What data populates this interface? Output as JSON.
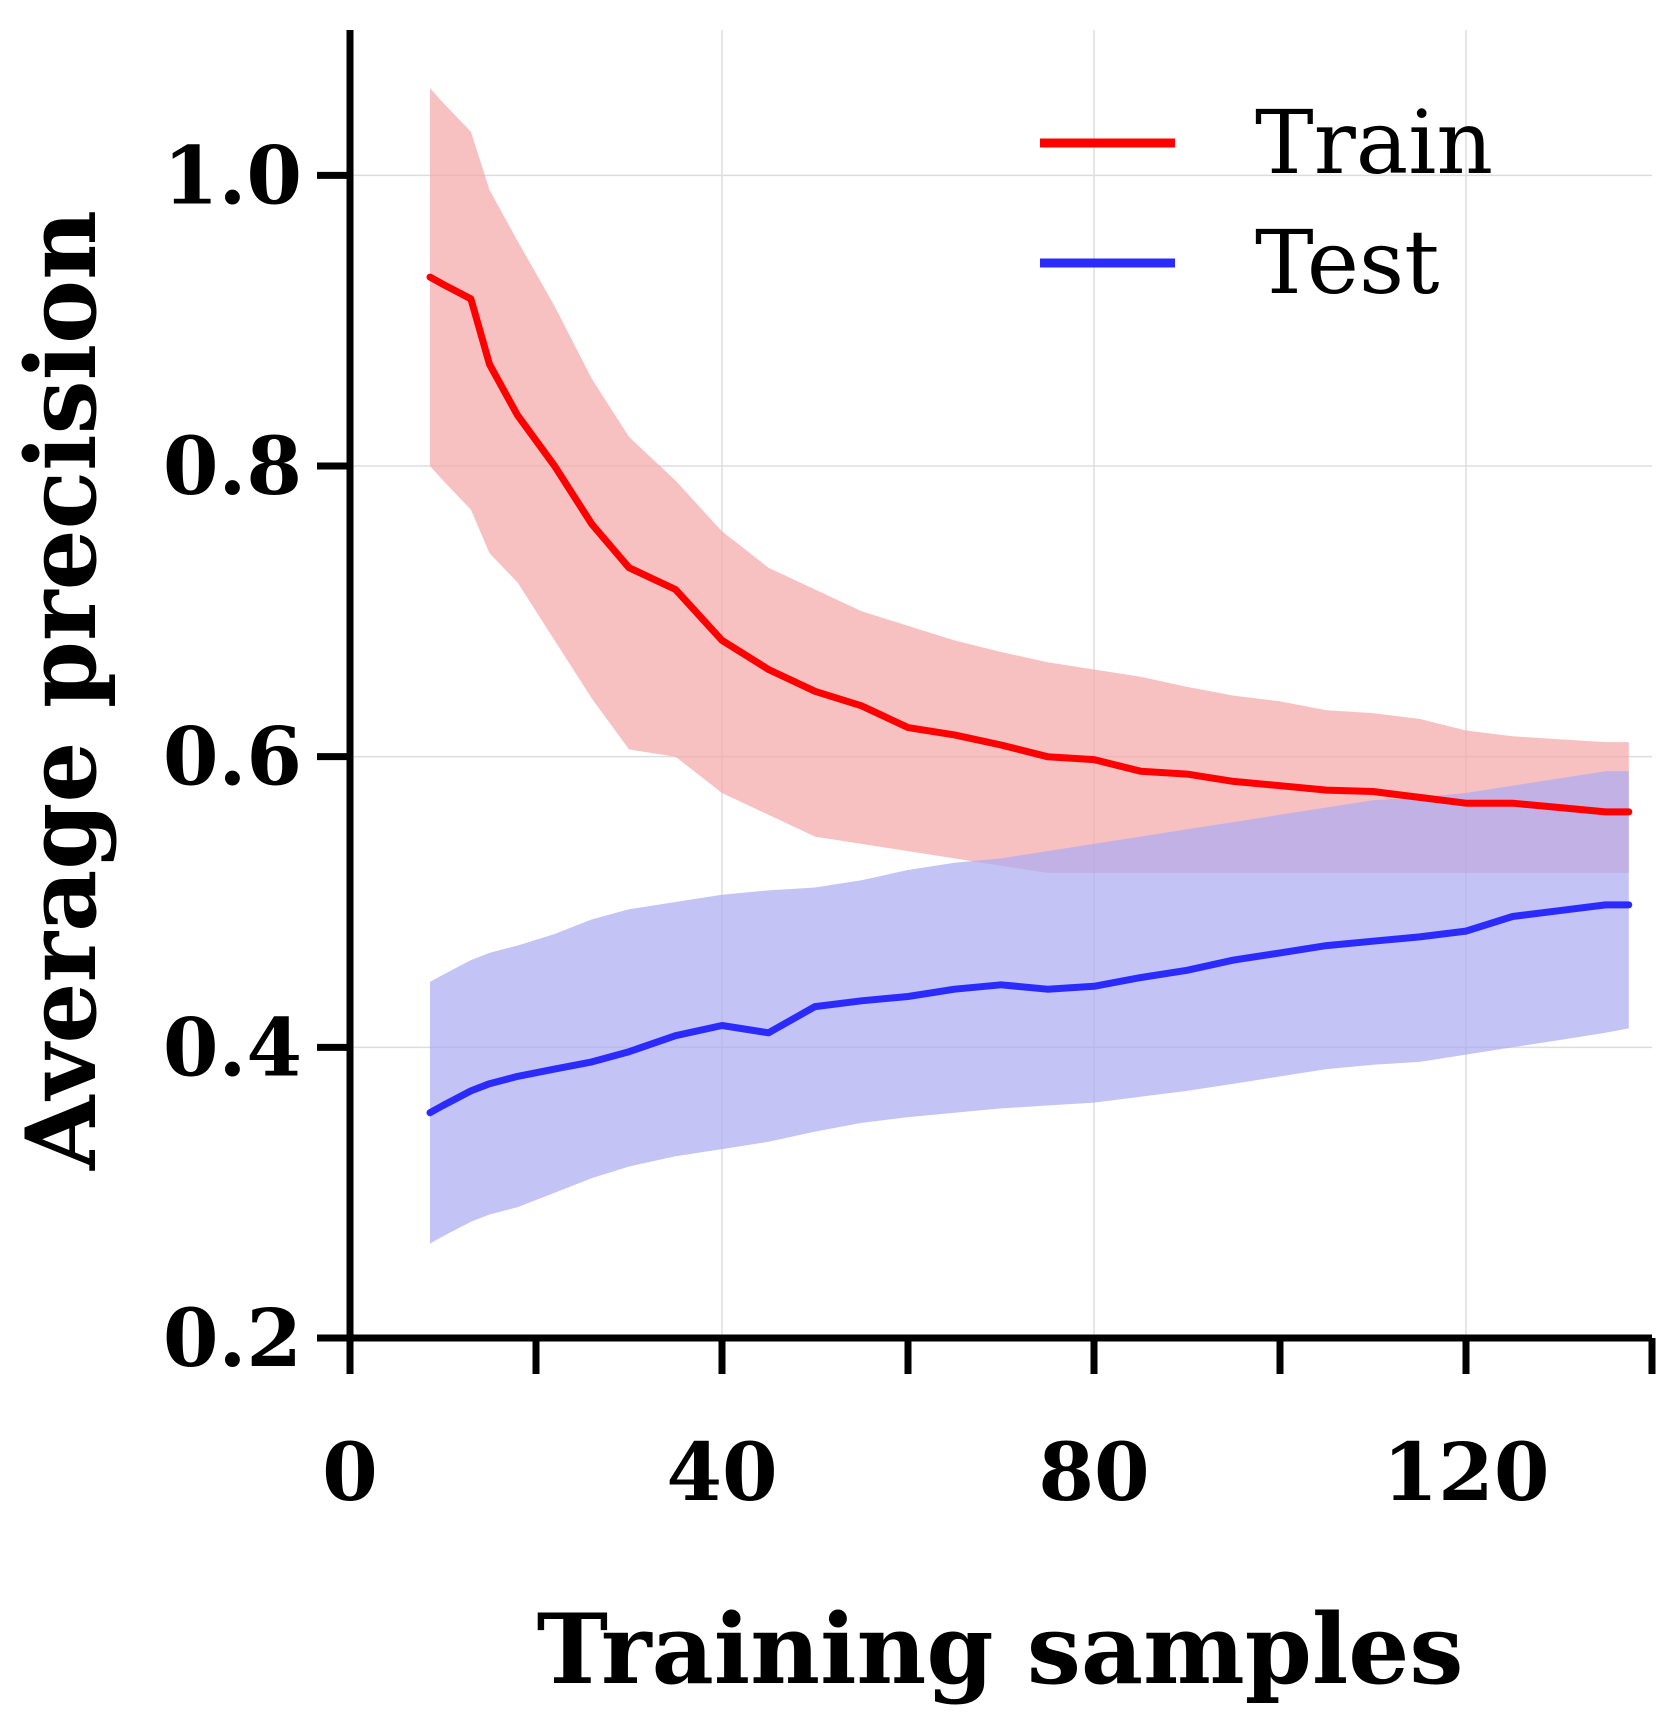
{
  "chart_data": {
    "type": "line",
    "title": "",
    "xlabel": "Training samples",
    "ylabel": "Average precision",
    "xlim": [
      0,
      140
    ],
    "ylim": [
      0.2,
      1.1
    ],
    "xticks": [
      0,
      20,
      40,
      60,
      80,
      100,
      120,
      140
    ],
    "xtick_labels": [
      "0",
      "",
      "40",
      "",
      "80",
      "",
      "120",
      ""
    ],
    "yticks": [
      0.2,
      0.4,
      0.6,
      0.8,
      1.0
    ],
    "ytick_labels": [
      "0.2",
      "0.4",
      "0.6",
      "0.8",
      "1.0"
    ],
    "grid": true,
    "legend_position": "top-right",
    "series": [
      {
        "name": "Train",
        "color": "#ff0000",
        "band_color": "#f4a6a6",
        "x": [
          8.6,
          10,
          13,
          15,
          18,
          22,
          26,
          30,
          35,
          40,
          45,
          50,
          55,
          60,
          65,
          70,
          75,
          80,
          85,
          90,
          95,
          100,
          105,
          110,
          115,
          120,
          125,
          130,
          135,
          137.5
        ],
        "y": [
          0.93,
          0.925,
          0.915,
          0.87,
          0.835,
          0.8,
          0.76,
          0.73,
          0.715,
          0.68,
          0.66,
          0.645,
          0.635,
          0.62,
          0.615,
          0.608,
          0.6,
          0.598,
          0.59,
          0.588,
          0.583,
          0.58,
          0.577,
          0.576,
          0.572,
          0.568,
          0.568,
          0.565,
          0.562,
          0.562
        ],
        "lower": [
          0.8,
          0.79,
          0.77,
          0.74,
          0.72,
          0.68,
          0.64,
          0.605,
          0.6,
          0.575,
          0.56,
          0.545,
          0.54,
          0.535,
          0.53,
          0.525,
          0.52,
          0.52,
          0.52,
          0.52,
          0.52,
          0.52,
          0.52,
          0.52,
          0.52,
          0.52,
          0.52,
          0.52,
          0.52,
          0.52
        ],
        "upper": [
          1.06,
          1.05,
          1.03,
          0.99,
          0.955,
          0.91,
          0.86,
          0.82,
          0.79,
          0.755,
          0.73,
          0.715,
          0.7,
          0.69,
          0.68,
          0.672,
          0.665,
          0.66,
          0.655,
          0.648,
          0.642,
          0.638,
          0.632,
          0.63,
          0.626,
          0.618,
          0.614,
          0.612,
          0.61,
          0.61
        ]
      },
      {
        "name": "Test",
        "color": "#2b2bff",
        "band_color": "#a9a9f2",
        "x": [
          8.6,
          10,
          13,
          15,
          18,
          22,
          26,
          30,
          35,
          40,
          45,
          50,
          55,
          60,
          65,
          70,
          75,
          80,
          85,
          90,
          95,
          100,
          105,
          110,
          115,
          120,
          125,
          130,
          135,
          137.5
        ],
        "y": [
          0.355,
          0.36,
          0.37,
          0.375,
          0.38,
          0.385,
          0.39,
          0.397,
          0.408,
          0.415,
          0.41,
          0.428,
          0.432,
          0.435,
          0.44,
          0.443,
          0.44,
          0.442,
          0.448,
          0.453,
          0.46,
          0.465,
          0.47,
          0.473,
          0.476,
          0.48,
          0.49,
          0.494,
          0.498,
          0.498
        ],
        "lower": [
          0.265,
          0.27,
          0.28,
          0.285,
          0.29,
          0.3,
          0.31,
          0.318,
          0.325,
          0.33,
          0.335,
          0.342,
          0.348,
          0.352,
          0.355,
          0.358,
          0.36,
          0.362,
          0.366,
          0.37,
          0.375,
          0.38,
          0.385,
          0.388,
          0.39,
          0.395,
          0.4,
          0.405,
          0.41,
          0.413
        ],
        "upper": [
          0.445,
          0.45,
          0.46,
          0.465,
          0.47,
          0.478,
          0.488,
          0.495,
          0.5,
          0.505,
          0.508,
          0.51,
          0.515,
          0.522,
          0.527,
          0.53,
          0.535,
          0.54,
          0.545,
          0.55,
          0.555,
          0.56,
          0.565,
          0.57,
          0.572,
          0.575,
          0.58,
          0.585,
          0.59,
          0.59
        ]
      }
    ]
  }
}
